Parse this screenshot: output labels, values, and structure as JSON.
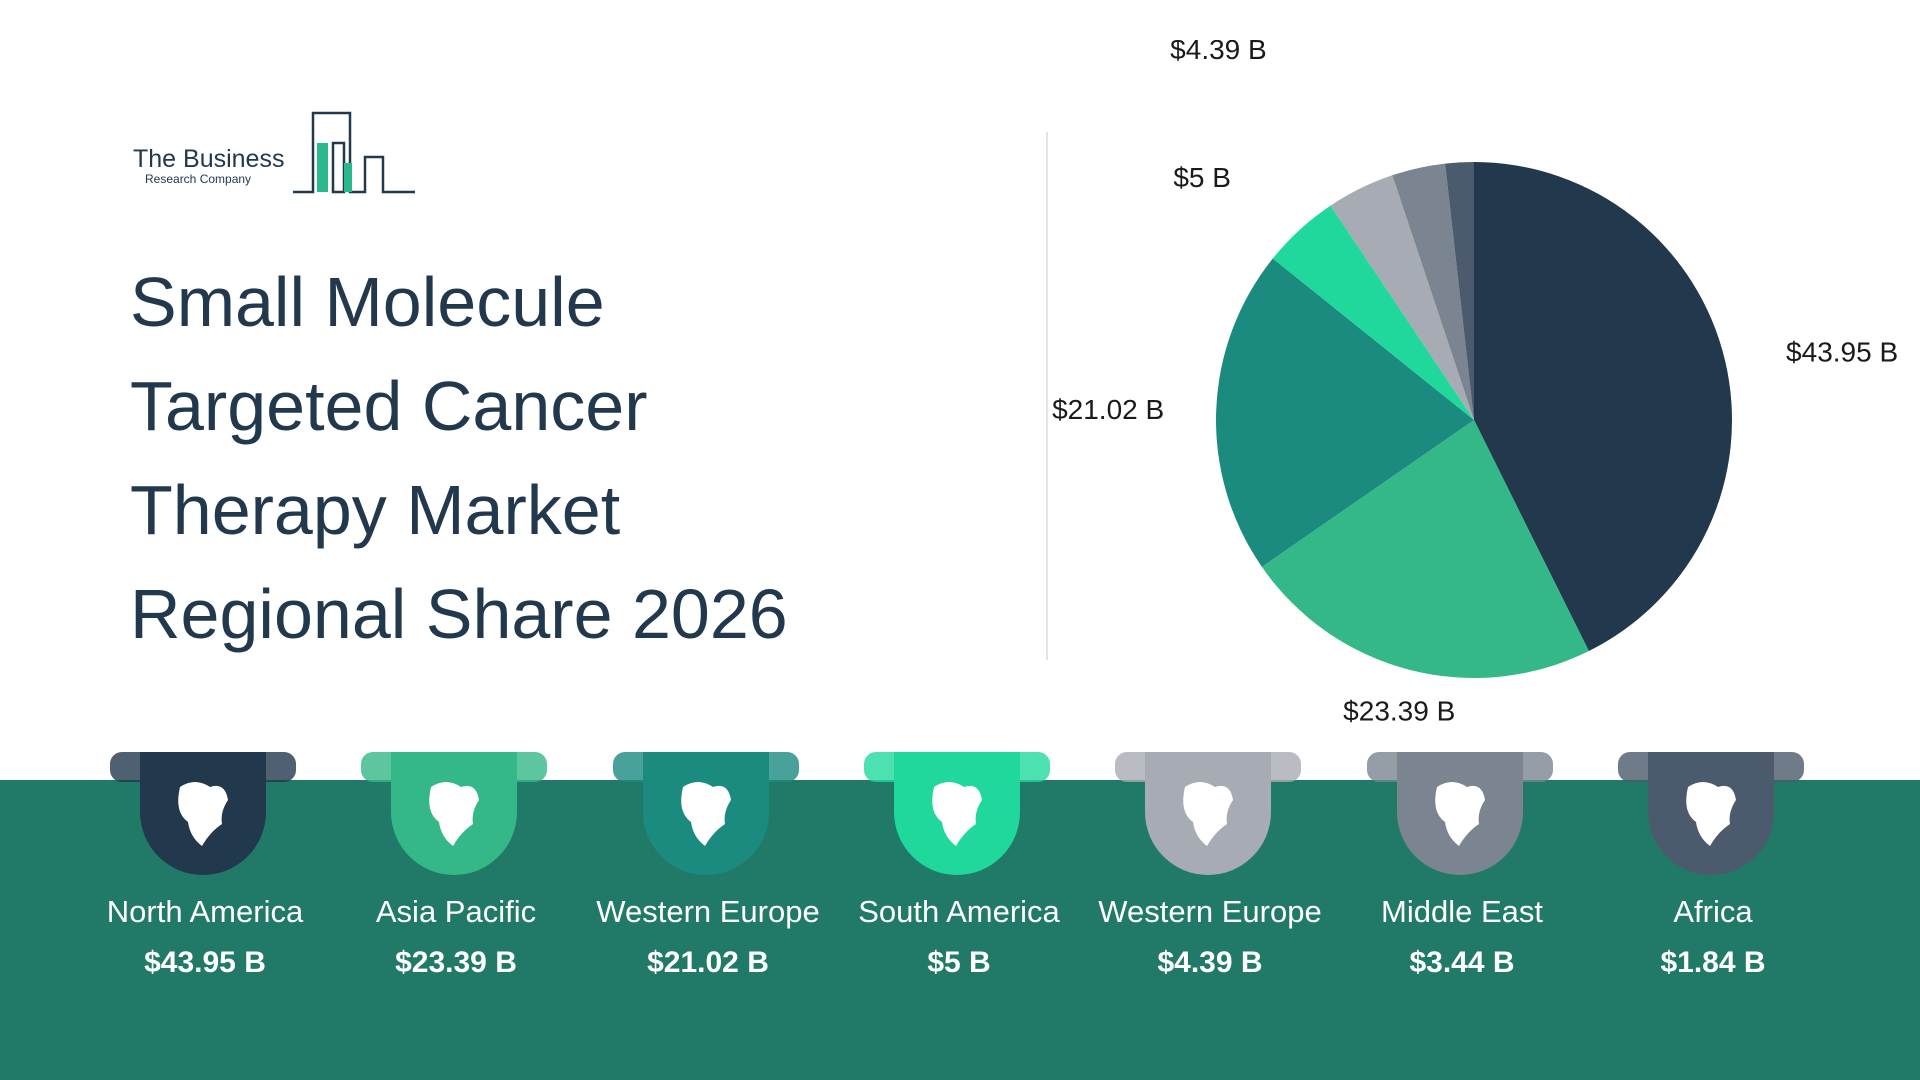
{
  "logo": {
    "line1": "The Business",
    "line2": "Research Company"
  },
  "title": "Small Molecule Targeted Cancer Therapy Market Regional Share 2026",
  "colors": {
    "band": "#217a68",
    "north_america": "#22384d",
    "asia_pacific": "#35b887",
    "western_europe_1": "#1b8b80",
    "south_america": "#20d89c",
    "western_europe_2": "#a7abb3",
    "middle_east": "#7a8591",
    "africa": "#4b5a6c"
  },
  "regions": [
    {
      "name": "North America",
      "value": "$43.95 B",
      "color": "#22384d",
      "icon": "north-america-map-icon"
    },
    {
      "name": "Asia Pacific",
      "value": "$23.39 B",
      "color": "#35b887",
      "icon": "asia-pacific-map-icon"
    },
    {
      "name": "Western Europe",
      "value": "$21.02 B",
      "color": "#1b8b80",
      "icon": "western-europe-map-icon"
    },
    {
      "name": "South America",
      "value": "$5 B",
      "color": "#20d89c",
      "icon": "south-america-map-icon"
    },
    {
      "name": "Western Europe",
      "value": "$4.39 B",
      "color": "#a7abb3",
      "icon": "europe-map-icon"
    },
    {
      "name": "Middle East",
      "value": "$3.44 B",
      "color": "#7a8591",
      "icon": "middle-east-map-icon"
    },
    {
      "name": "Africa",
      "value": "$1.84 B",
      "color": "#4b5a6c",
      "icon": "africa-map-icon"
    }
  ],
  "chart_data": {
    "type": "pie",
    "title": "Small Molecule Targeted Cancer Therapy Market Regional Share 2026",
    "categories": [
      "North America",
      "Asia Pacific",
      "Western Europe",
      "South America",
      "Western Europe",
      "Middle East",
      "Africa"
    ],
    "values": [
      43.95,
      23.39,
      21.02,
      5,
      4.39,
      3.44,
      1.84
    ],
    "labels": [
      "$43.95 B",
      "$23.39 B",
      "$21.02 B",
      "$5 B",
      "$4.39 B",
      "$3.44 B",
      "$1.84 B"
    ],
    "colors": [
      "#22384d",
      "#35b887",
      "#1b8b80",
      "#20d89c",
      "#a7abb3",
      "#7a8591",
      "#4b5a6c"
    ],
    "start_angle": "12 o'clock, clockwise",
    "legend": "none"
  }
}
